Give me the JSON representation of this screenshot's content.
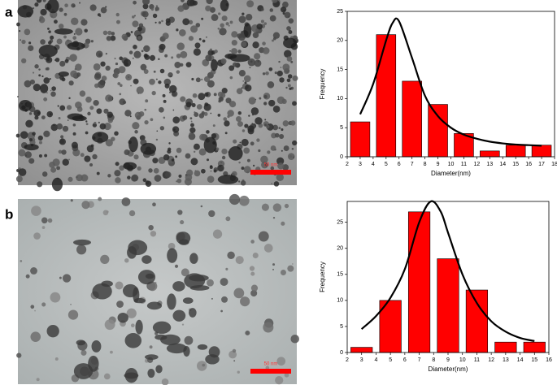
{
  "panels": [
    {
      "label": "a",
      "scale_bar": "50 nm"
    },
    {
      "label": "b",
      "scale_bar": "50 nm"
    }
  ],
  "chart_data": [
    {
      "type": "histogram",
      "xlabel": "Diameter(nm)",
      "ylabel": "Frequency",
      "x": [
        3,
        5,
        7,
        9,
        11,
        13,
        15,
        17
      ],
      "values": [
        6,
        21,
        13,
        9,
        4,
        1,
        2,
        2
      ],
      "bar_width": 1.5,
      "color": "#ff0000",
      "xlim": [
        2,
        18
      ],
      "xticks": [
        2,
        3,
        4,
        5,
        6,
        7,
        8,
        9,
        10,
        11,
        12,
        13,
        14,
        15,
        16,
        17,
        18
      ],
      "ylim": [
        0,
        25
      ],
      "yticks": [
        0,
        5,
        10,
        15,
        20,
        25
      ],
      "curve": {
        "x": [
          3,
          4,
          5,
          5.5,
          6,
          7,
          8,
          9,
          10,
          11,
          12,
          13,
          14,
          15,
          16,
          17
        ],
        "values": [
          7.3,
          12.5,
          20,
          23,
          23.3,
          17,
          10.5,
          7,
          5,
          3.8,
          3.1,
          2.6,
          2.3,
          2.1,
          2,
          1.9
        ],
        "color": "#000000"
      }
    },
    {
      "type": "histogram",
      "xlabel": "Diameter(nm)",
      "ylabel": "Frequency",
      "x": [
        3,
        5,
        7,
        9,
        11,
        13,
        15
      ],
      "values": [
        1,
        10,
        27,
        18,
        12,
        2,
        2
      ],
      "bar_width": 1.5,
      "color": "#ff0000",
      "xlim": [
        2,
        16
      ],
      "xticks": [
        2,
        3,
        4,
        5,
        6,
        7,
        8,
        9,
        10,
        11,
        12,
        13,
        14,
        15,
        16
      ],
      "ylim": [
        0,
        29
      ],
      "yticks": [
        0,
        5,
        10,
        15,
        20,
        25
      ],
      "curve": {
        "x": [
          3,
          4,
          5,
          6,
          7,
          7.8,
          8.5,
          9,
          10,
          11,
          12,
          13,
          14,
          15
        ],
        "values": [
          4.5,
          7,
          10.5,
          16,
          25,
          29,
          27,
          23,
          15,
          9.5,
          6,
          4,
          2.8,
          2.2
        ],
        "color": "#000000"
      }
    }
  ]
}
